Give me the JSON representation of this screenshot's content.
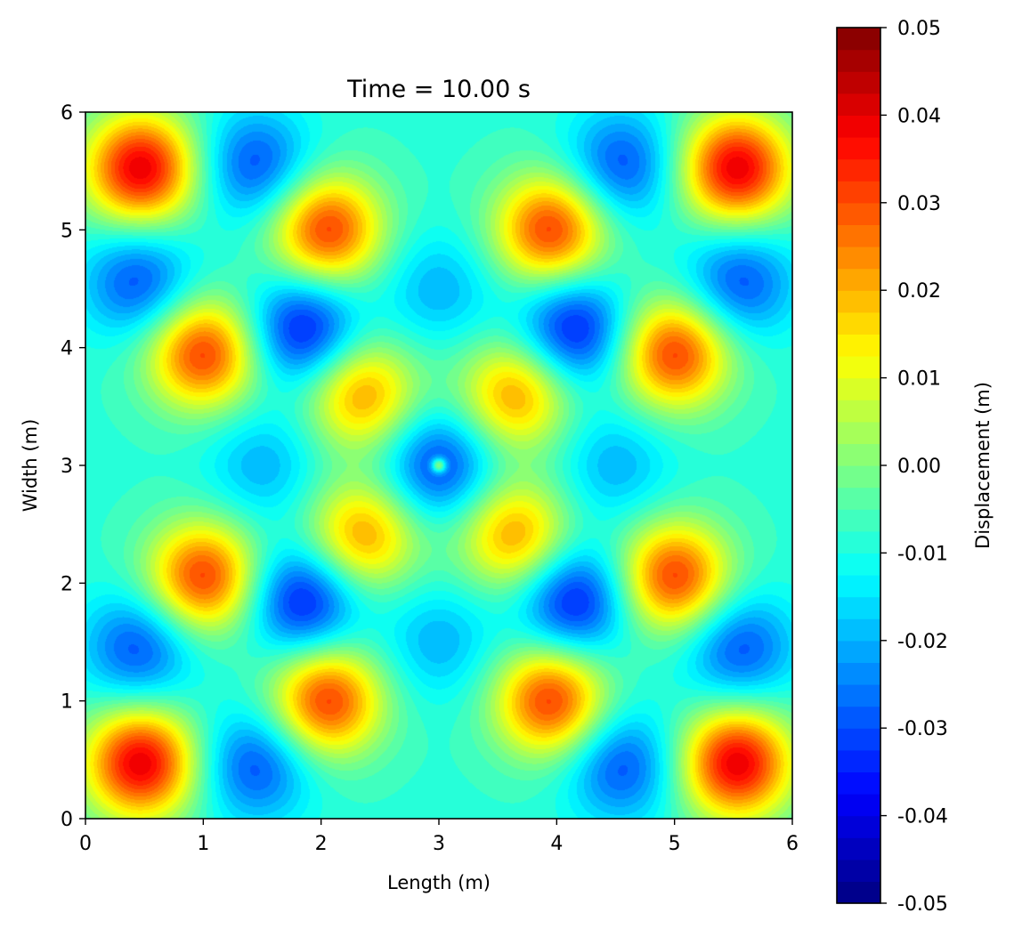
{
  "chart_data": {
    "type": "heatmap",
    "subtype": "filled-contour",
    "title": "Time = 10.00 s",
    "xlabel": "Length (m)",
    "ylabel": "Width (m)",
    "xlim": [
      0,
      6
    ],
    "ylim": [
      0,
      6
    ],
    "xticks": [
      0,
      1,
      2,
      3,
      4,
      5,
      6
    ],
    "yticks": [
      0,
      1,
      2,
      3,
      4,
      5,
      6
    ],
    "xtick_labels": [
      "0",
      "1",
      "2",
      "3",
      "4",
      "5",
      "6"
    ],
    "ytick_labels": [
      "0",
      "1",
      "2",
      "3",
      "4",
      "5",
      "6"
    ],
    "colormap": "jet",
    "levels": 40,
    "colorbar": {
      "label": "Displacement (m)",
      "range": [
        -0.05,
        0.05
      ],
      "ticks": [
        -0.05,
        -0.04,
        -0.03,
        -0.02,
        -0.01,
        0.0,
        0.01,
        0.02,
        0.03,
        0.04,
        0.05
      ],
      "tick_labels": [
        "-0.05",
        "-0.04",
        "-0.03",
        "-0.02",
        "-0.01",
        "0.00",
        "0.01",
        "0.02",
        "0.03",
        "0.04",
        "0.05"
      ]
    },
    "background_value": -0.008,
    "features": [
      {
        "x": 0.47,
        "y": 5.52,
        "value": 0.04
      },
      {
        "x": 5.53,
        "y": 5.52,
        "value": 0.04
      },
      {
        "x": 0.47,
        "y": 0.47,
        "value": 0.04
      },
      {
        "x": 5.53,
        "y": 0.47,
        "value": 0.04
      },
      {
        "x": 1.45,
        "y": 5.55,
        "value": -0.03
      },
      {
        "x": 4.55,
        "y": 5.55,
        "value": -0.03
      },
      {
        "x": 1.45,
        "y": 0.45,
        "value": -0.03
      },
      {
        "x": 4.55,
        "y": 0.45,
        "value": -0.03
      },
      {
        "x": 0.45,
        "y": 4.55,
        "value": -0.03
      },
      {
        "x": 5.55,
        "y": 4.55,
        "value": -0.03
      },
      {
        "x": 0.45,
        "y": 1.45,
        "value": -0.03
      },
      {
        "x": 5.55,
        "y": 1.45,
        "value": -0.03
      },
      {
        "x": 2.05,
        "y": 5.0,
        "value": 0.032
      },
      {
        "x": 3.95,
        "y": 5.0,
        "value": 0.032
      },
      {
        "x": 2.05,
        "y": 1.0,
        "value": 0.032
      },
      {
        "x": 3.95,
        "y": 1.0,
        "value": 0.032
      },
      {
        "x": 1.0,
        "y": 3.95,
        "value": 0.032
      },
      {
        "x": 5.0,
        "y": 3.95,
        "value": 0.032
      },
      {
        "x": 1.0,
        "y": 2.05,
        "value": 0.032
      },
      {
        "x": 5.0,
        "y": 2.05,
        "value": 0.032
      },
      {
        "x": 1.85,
        "y": 4.15,
        "value": -0.037
      },
      {
        "x": 4.15,
        "y": 4.15,
        "value": -0.037
      },
      {
        "x": 1.85,
        "y": 1.85,
        "value": -0.037
      },
      {
        "x": 4.15,
        "y": 1.85,
        "value": -0.037
      },
      {
        "x": 2.35,
        "y": 3.6,
        "value": 0.022
      },
      {
        "x": 3.65,
        "y": 3.6,
        "value": 0.022
      },
      {
        "x": 2.35,
        "y": 2.4,
        "value": 0.022
      },
      {
        "x": 3.65,
        "y": 2.4,
        "value": 0.022
      },
      {
        "x": 3.0,
        "y": 4.5,
        "value": -0.02
      },
      {
        "x": 3.0,
        "y": 1.5,
        "value": -0.02
      },
      {
        "x": 1.5,
        "y": 3.0,
        "value": -0.02
      },
      {
        "x": 4.5,
        "y": 3.0,
        "value": -0.02
      },
      {
        "x": 3.0,
        "y": 3.0,
        "value": -0.032
      },
      {
        "x": 3.0,
        "y": 3.0,
        "value": 0.0
      }
    ]
  }
}
